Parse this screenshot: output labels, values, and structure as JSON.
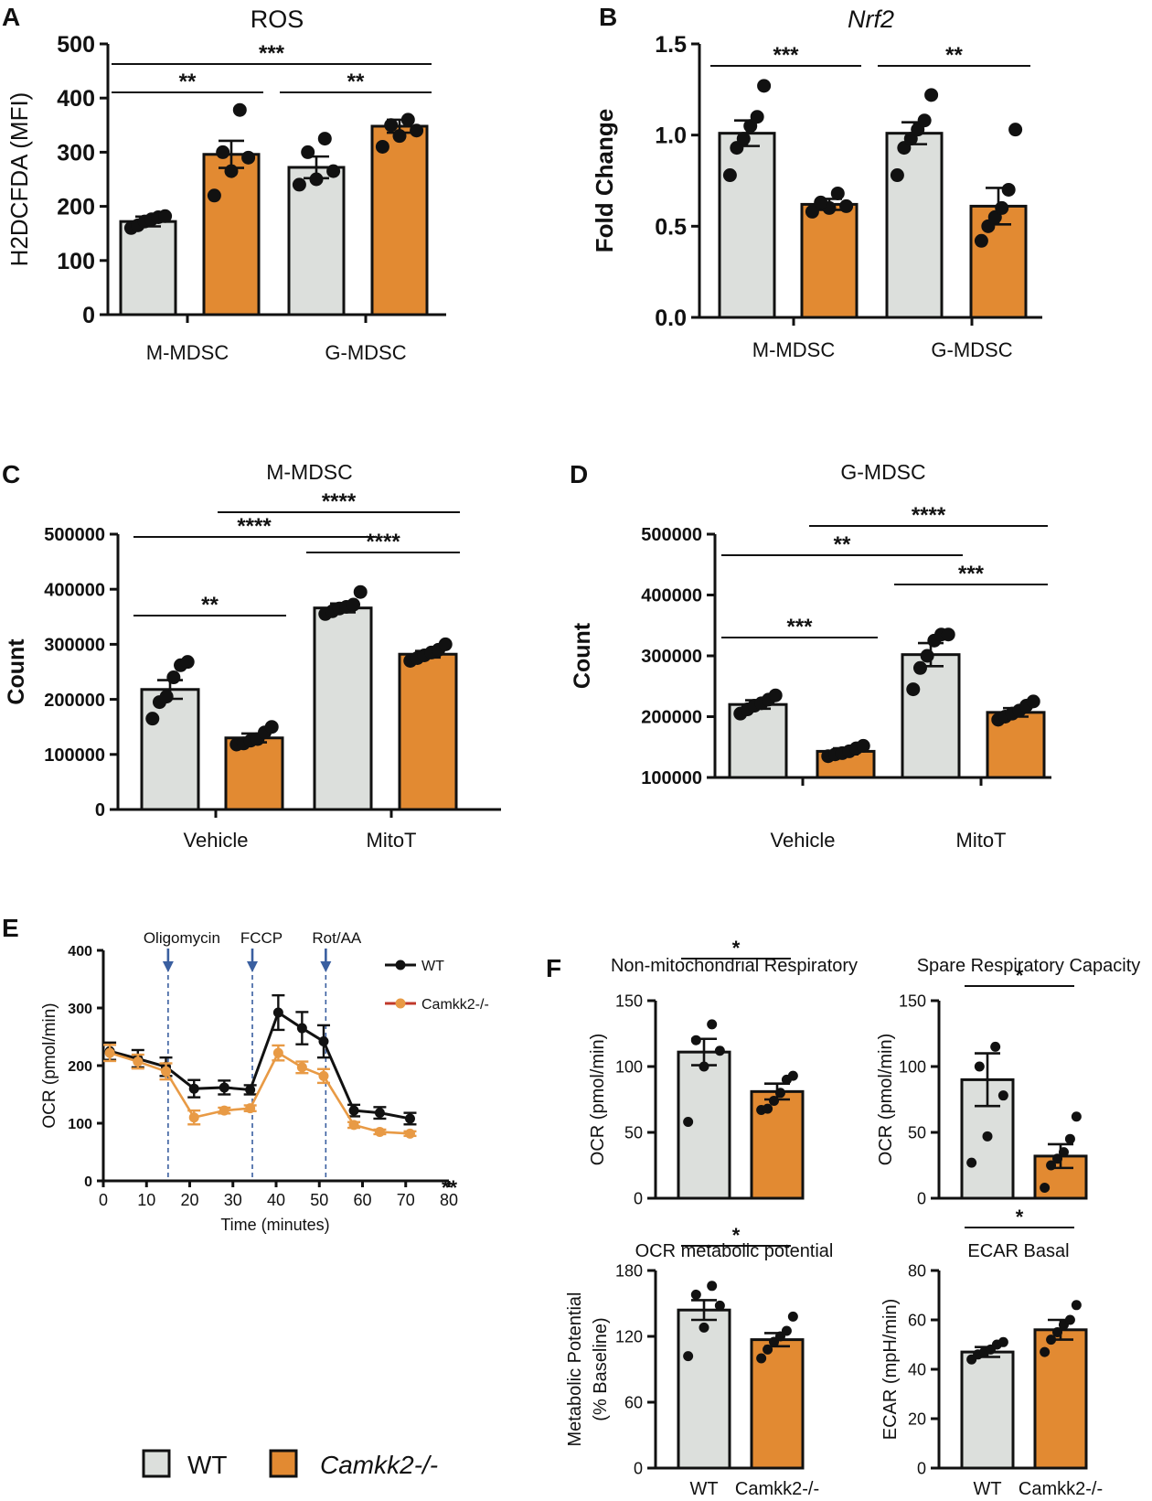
{
  "colors": {
    "wt": "#dcdfdc",
    "ko": "#e28a32",
    "ko_line": "#e89a45",
    "axis": "#111111",
    "arrow": "#3a5fa0",
    "legend_ko_line": "#c0392b"
  },
  "legend": {
    "wt_label": "WT",
    "ko_label": "Camkk2-/-"
  },
  "chart_data": [
    {
      "id": "A",
      "type": "bar",
      "panel_label": "A",
      "title": "ROS",
      "ylabel": "H2DCFDA (MFI)",
      "ylim": [
        0,
        500
      ],
      "yticks": [
        0,
        100,
        200,
        300,
        400,
        500
      ],
      "group_labels": [
        "M-MDSC",
        "G-MDSC"
      ],
      "series": [
        {
          "name": "WT",
          "values": [
            172,
            272
          ],
          "errors": [
            9,
            20
          ]
        },
        {
          "name": "Camkk2-/-",
          "values": [
            296,
            348
          ],
          "errors": [
            25,
            12
          ]
        }
      ],
      "points": [
        [
          160,
          165,
          172,
          176,
          180,
          182
        ],
        [
          220,
          265,
          290,
          300,
          378
        ],
        [
          240,
          250,
          265,
          300,
          325
        ],
        [
          310,
          330,
          340,
          350,
          360
        ]
      ],
      "significance": [
        {
          "from": 0,
          "to": 1,
          "label": "**"
        },
        {
          "from": 2,
          "to": 3,
          "label": "**"
        },
        {
          "from": 0,
          "to": 3,
          "label": "***"
        }
      ]
    },
    {
      "id": "B",
      "type": "bar",
      "panel_label": "B",
      "title": "Nrf2",
      "ylabel": "Fold Change",
      "ylim": [
        0,
        1.5
      ],
      "yticks": [
        "0.0",
        "0.5",
        "1.0",
        "1.5"
      ],
      "group_labels": [
        "M-MDSC",
        "G-MDSC"
      ],
      "series": [
        {
          "name": "WT",
          "values": [
            1.01,
            1.01
          ],
          "errors": [
            0.07,
            0.06
          ]
        },
        {
          "name": "Camkk2-/-",
          "values": [
            0.62,
            0.61
          ],
          "errors": [
            0.03,
            0.1
          ]
        }
      ],
      "points": [
        [
          0.78,
          0.93,
          0.98,
          1.05,
          1.1,
          1.27
        ],
        [
          0.58,
          0.6,
          0.61,
          0.63,
          0.68
        ],
        [
          0.78,
          0.93,
          0.98,
          1.03,
          1.08,
          1.22
        ],
        [
          0.42,
          0.5,
          0.55,
          0.6,
          0.7,
          1.03
        ]
      ],
      "significance": [
        {
          "from": 0,
          "to": 1,
          "label": "***"
        },
        {
          "from": 2,
          "to": 3,
          "label": "**"
        }
      ]
    },
    {
      "id": "C",
      "type": "bar",
      "panel_label": "C",
      "title": "M-MDSC",
      "ylabel": "Count",
      "ylim": [
        0,
        500000
      ],
      "yticks": [
        0,
        100000,
        200000,
        300000,
        400000,
        500000
      ],
      "group_labels": [
        "Vehicle",
        "MitoT"
      ],
      "series": [
        {
          "name": "WT",
          "values": [
            218000,
            366000
          ],
          "errors": [
            17000,
            8000
          ]
        },
        {
          "name": "Camkk2-/-",
          "values": [
            130000,
            282000
          ],
          "errors": [
            8000,
            6000
          ]
        }
      ],
      "points": [
        [
          165000,
          195000,
          205000,
          240000,
          262000,
          268000
        ],
        [
          118000,
          120000,
          125000,
          128000,
          140000,
          150000
        ],
        [
          355000,
          360000,
          365000,
          368000,
          372000,
          395000
        ],
        [
          270000,
          275000,
          280000,
          285000,
          290000,
          300000
        ]
      ],
      "significance": [
        {
          "from": 0,
          "to": 1,
          "label": "**"
        },
        {
          "from": 0,
          "to": 2,
          "label": "****"
        },
        {
          "from": 2,
          "to": 3,
          "label": "****"
        },
        {
          "from": 1,
          "to": 3,
          "label": "****"
        }
      ]
    },
    {
      "id": "D",
      "type": "bar",
      "panel_label": "D",
      "title": "G-MDSC",
      "ylabel": "Count",
      "ylim": [
        100000,
        500000
      ],
      "yticks": [
        100000,
        200000,
        300000,
        400000,
        500000
      ],
      "group_labels": [
        "Vehicle",
        "MitoT"
      ],
      "series": [
        {
          "name": "WT",
          "values": [
            220000,
            302000
          ],
          "errors": [
            7000,
            19000
          ]
        },
        {
          "name": "Camkk2-/-",
          "values": [
            143000,
            207000
          ],
          "errors": [
            5000,
            7000
          ]
        }
      ],
      "points": [
        [
          205000,
          212000,
          218000,
          222000,
          228000,
          235000
        ],
        [
          135000,
          138000,
          140000,
          143000,
          148000,
          152000
        ],
        [
          245000,
          280000,
          300000,
          325000,
          335000,
          335000
        ],
        [
          195000,
          200000,
          205000,
          210000,
          218000,
          225000
        ]
      ],
      "significance": [
        {
          "from": 0,
          "to": 1,
          "label": "***"
        },
        {
          "from": 2,
          "to": 3,
          "label": "***"
        },
        {
          "from": 0,
          "to": 2,
          "label": "**"
        },
        {
          "from": 1,
          "to": 3,
          "label": "****"
        }
      ]
    },
    {
      "id": "E",
      "type": "line",
      "panel_label": "E",
      "xlabel": "Time (minutes)",
      "ylabel": "OCR (pmol/min)",
      "xlim": [
        0,
        80
      ],
      "ylim": [
        0,
        400
      ],
      "xticks": [
        0,
        10,
        20,
        30,
        40,
        50,
        60,
        70,
        80
      ],
      "yticks": [
        0,
        100,
        200,
        300,
        400
      ],
      "injections": [
        {
          "label": "Oligomycin",
          "x": 15
        },
        {
          "label": "FCCP",
          "x": 34.5
        },
        {
          "label": "Rot/AA",
          "x": 51.5
        }
      ],
      "x": [
        1.5,
        8,
        14.5,
        21,
        28,
        34,
        40.5,
        46,
        51,
        58,
        64,
        71
      ],
      "series": [
        {
          "name": "WT",
          "values": [
            225,
            212,
            198,
            160,
            162,
            158,
            292,
            265,
            242,
            122,
            118,
            108
          ],
          "errors": [
            15,
            15,
            16,
            15,
            12,
            8,
            30,
            28,
            28,
            10,
            10,
            10
          ]
        },
        {
          "name": "Camkk2-/-",
          "values": [
            222,
            207,
            190,
            110,
            122,
            126,
            222,
            197,
            182,
            97,
            85,
            82
          ],
          "errors": [
            14,
            12,
            14,
            12,
            5,
            5,
            13,
            10,
            12,
            5,
            4,
            4
          ]
        }
      ],
      "annotation": "**"
    },
    {
      "id": "F1",
      "type": "bar",
      "panel_label": "F",
      "title": "Non-mitochondrial Respiratory",
      "ylabel": "OCR (pmol/min)",
      "ylim": [
        0,
        150
      ],
      "yticks": [
        0,
        50,
        100,
        150
      ],
      "categories": [
        "WT",
        "Camkk2-/-"
      ],
      "series": [
        {
          "name": "value",
          "values": [
            111,
            81
          ],
          "errors": [
            10,
            6
          ]
        }
      ],
      "points": [
        [
          58,
          100,
          112,
          120,
          132
        ],
        [
          67,
          68,
          74,
          80,
          90,
          93
        ]
      ],
      "significance": [
        {
          "from": 0,
          "to": 1,
          "label": "*"
        }
      ]
    },
    {
      "id": "F2",
      "type": "bar",
      "title": "Spare Respiratory Capacity",
      "ylabel": "OCR (pmol/min)",
      "ylim": [
        0,
        150
      ],
      "yticks": [
        0,
        50,
        100,
        150
      ],
      "categories": [
        "WT",
        "Camkk2-/-"
      ],
      "series": [
        {
          "name": "value",
          "values": [
            90,
            32
          ],
          "errors": [
            20,
            9
          ]
        }
      ],
      "points": [
        [
          27,
          47,
          78,
          100,
          115
        ],
        [
          8,
          25,
          30,
          35,
          45,
          62
        ]
      ],
      "significance": [
        {
          "from": 0,
          "to": 1,
          "label": "*"
        }
      ]
    },
    {
      "id": "F3",
      "type": "bar",
      "title": "OCR metabolic potential",
      "ylabel": "Metabolic Potential\n(% Baseline)",
      "ylim": [
        0,
        180
      ],
      "yticks": [
        0,
        60,
        120,
        180
      ],
      "categories": [
        "WT",
        "Camkk2-/-"
      ],
      "series": [
        {
          "name": "value",
          "values": [
            144,
            117
          ],
          "errors": [
            9,
            6
          ]
        }
      ],
      "points": [
        [
          102,
          128,
          148,
          158,
          166
        ],
        [
          100,
          108,
          115,
          120,
          125,
          138
        ]
      ],
      "significance": [
        {
          "from": 0,
          "to": 1,
          "label": "*"
        }
      ]
    },
    {
      "id": "F4",
      "type": "bar",
      "title": "ECAR Basal",
      "ylabel": "ECAR (mpH/min)",
      "ylim": [
        0,
        80
      ],
      "yticks": [
        0,
        20,
        40,
        60,
        80
      ],
      "categories": [
        "WT",
        "Camkk2-/-"
      ],
      "series": [
        {
          "name": "value",
          "values": [
            47,
            56
          ],
          "errors": [
            2,
            4
          ]
        }
      ],
      "points": [
        [
          44,
          46,
          47,
          48,
          50,
          51
        ],
        [
          47,
          52,
          55,
          58,
          60,
          66
        ]
      ],
      "significance": [
        {
          "from": 0,
          "to": 1,
          "label": "*"
        }
      ]
    }
  ]
}
